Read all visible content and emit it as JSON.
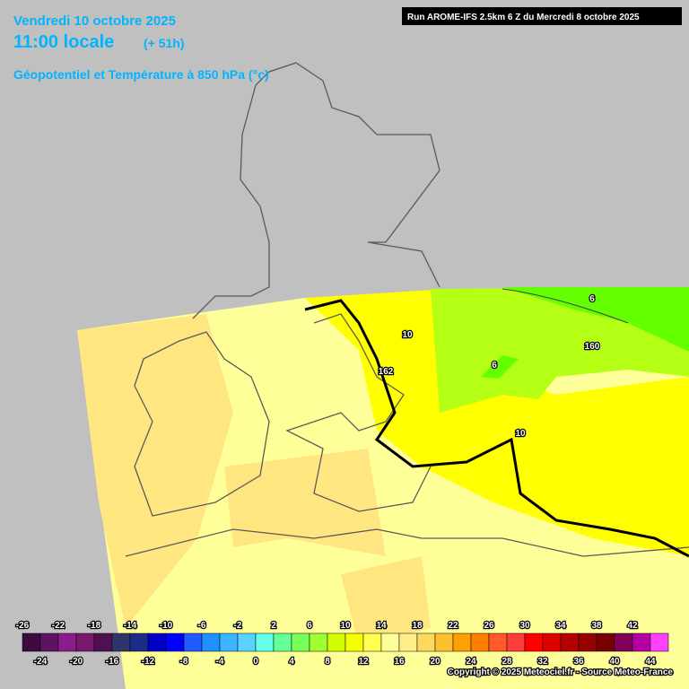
{
  "header": {
    "date": "Vendredi 10 octobre 2025",
    "time": "11:00 locale",
    "lead": "(+ 51h)",
    "field": "Géopotentiel et Température à 850 hPa (°c)",
    "run": "Run AROME-IFS 2.5km 6 Z du Mercredi 8 octobre 2025"
  },
  "contour_labels": [
    "6",
    "160",
    "10",
    "162",
    "6",
    "10"
  ],
  "legend": {
    "top_labels": [
      -26,
      -22,
      -18,
      -14,
      -10,
      -6,
      -2,
      2,
      6,
      10,
      14,
      18,
      22,
      26,
      30,
      34,
      38,
      42
    ],
    "bottom_labels": [
      -24,
      -20,
      -16,
      -12,
      -8,
      -4,
      0,
      4,
      8,
      12,
      16,
      20,
      24,
      28,
      32,
      36,
      40,
      44
    ],
    "colors": [
      "#3c0a3c",
      "#5e1262",
      "#8c1c8c",
      "#78186c",
      "#4e1050",
      "#303468",
      "#1c2c88",
      "#0000c8",
      "#0000ff",
      "#1e5aff",
      "#1e90ff",
      "#3cb4ff",
      "#5ad2ff",
      "#64ffe6",
      "#64ff96",
      "#78ff5a",
      "#a0ff32",
      "#d2ff00",
      "#f5ff00",
      "#ffff50",
      "#ffff99",
      "#ffee88",
      "#ffd860",
      "#ffc030",
      "#ffa000",
      "#ff7d00",
      "#ff5a28",
      "#ff3c3c",
      "#ff0000",
      "#dc0000",
      "#b40000",
      "#960000",
      "#780000",
      "#82005a",
      "#b400a0",
      "#ff40ff"
    ]
  },
  "copyright": "Copyright © 2025 Meteociel.fr - Source Meteo-France"
}
